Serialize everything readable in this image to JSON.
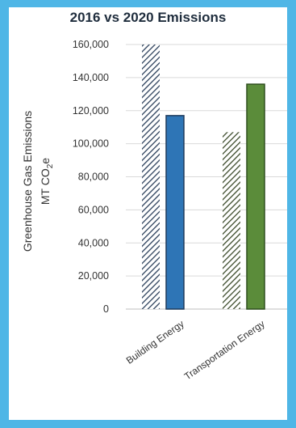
{
  "chart_data": {
    "type": "bar",
    "title": "2016 vs 2020 Emissions",
    "ylabel_line1": "Greenhouse Gas Emissions",
    "ylabel_line2_main": "MT CO",
    "ylabel_line2_sub": "2",
    "ylabel_line2_end": "e",
    "ylim": [
      0,
      160000
    ],
    "yticks": [
      "0",
      "20,000",
      "40,000",
      "60,000",
      "80,000",
      "100,000",
      "120,000",
      "140,000",
      "160,000"
    ],
    "ytick_values": [
      0,
      20000,
      40000,
      60000,
      80000,
      100000,
      120000,
      140000,
      160000
    ],
    "grid": true,
    "categories": [
      "Building Energy",
      "Transportation Energy"
    ],
    "series": [
      {
        "values": [
          160000,
          107000
        ],
        "fill": "hatched"
      },
      {
        "values": [
          117000,
          136000
        ],
        "fill": "solid"
      }
    ],
    "colors": {
      "building_2016_hatch": "#2b3f5a",
      "building_2020": "#2e75b6",
      "transport_2016_hatch": "#3b4a2a",
      "transport_2020": "#5b8c3a",
      "bar_outline_building": "#1f3b5c",
      "bar_outline_transport": "#2f4f1f"
    }
  }
}
